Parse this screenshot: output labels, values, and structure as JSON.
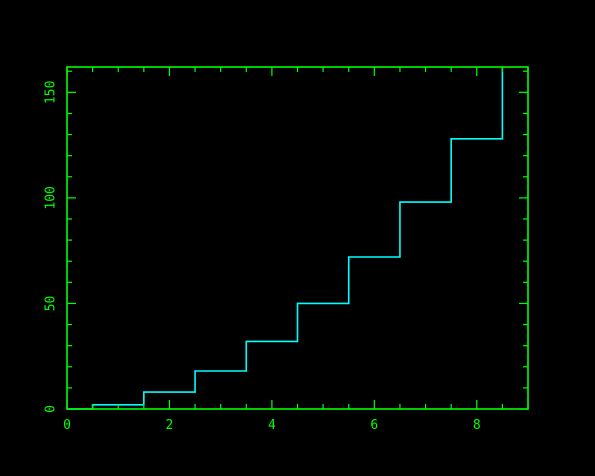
{
  "colors": {
    "background": "#000000",
    "axes": "#00ff00",
    "series": "#00ffff"
  },
  "chart_data": {
    "type": "line",
    "style": "step-histogram",
    "title": "",
    "xlabel": "",
    "ylabel": "",
    "xlim": [
      0,
      9
    ],
    "ylim": [
      0,
      162
    ],
    "grid": false,
    "x_ticks": [
      {
        "value": 0,
        "label": "0"
      },
      {
        "value": 2,
        "label": "2"
      },
      {
        "value": 4,
        "label": "4"
      },
      {
        "value": 6,
        "label": "6"
      },
      {
        "value": 8,
        "label": "8"
      }
    ],
    "y_ticks": [
      {
        "value": 0,
        "label": "0"
      },
      {
        "value": 50,
        "label": "50"
      },
      {
        "value": 100,
        "label": "100"
      },
      {
        "value": 150,
        "label": "150"
      }
    ],
    "x_minor_step": 0.5,
    "y_minor_step": 10,
    "series": [
      {
        "bin_centers": [
          0,
          1,
          2,
          3,
          4,
          5,
          6,
          7,
          8
        ],
        "values": [
          0,
          2,
          8,
          18,
          32,
          50,
          72,
          98,
          128
        ],
        "last_bin_value": 162
      }
    ]
  }
}
